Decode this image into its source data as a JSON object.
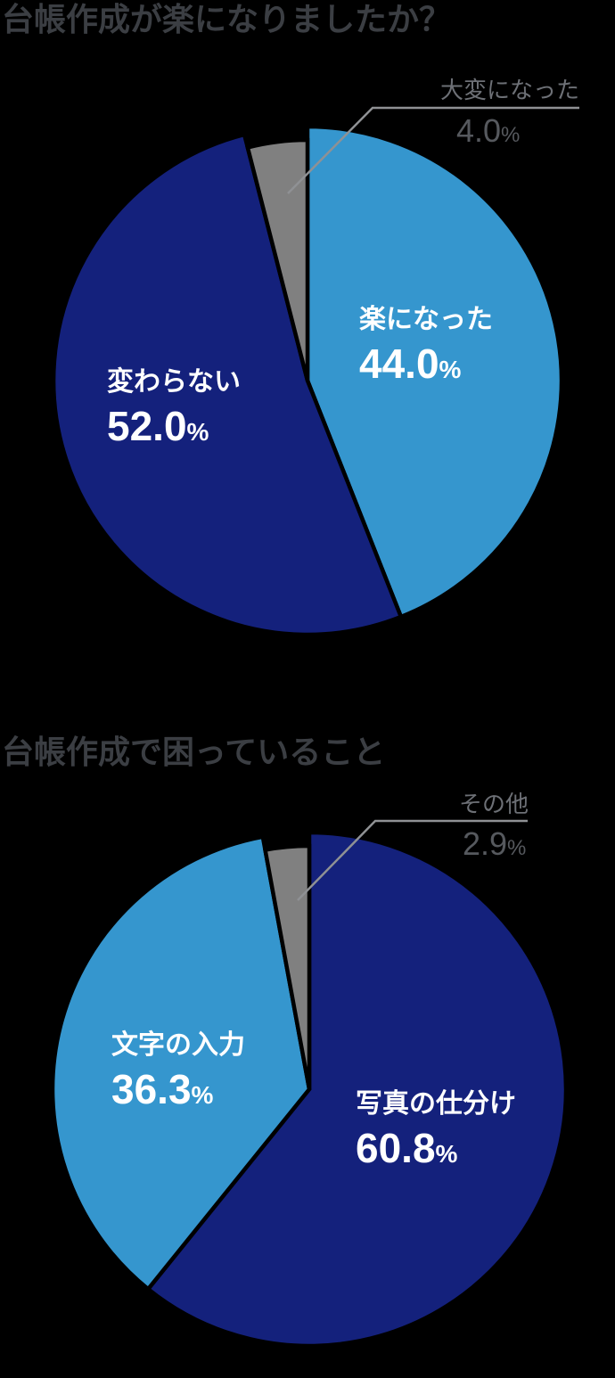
{
  "page": {
    "background": "#000000",
    "legend": "none"
  },
  "palette": {
    "dark_blue": "#14217C",
    "light_blue": "#3596CE",
    "gray": "#808080",
    "title_text": "#3B3E43",
    "callout_name_text": "#6D7076",
    "callout_value_text": "#56595E",
    "leader_line": "#8F9194",
    "slice_label_text": "#FFFFFF",
    "slice_separator": "#000000"
  },
  "chart_data": [
    {
      "type": "pie",
      "title": "台帳作成が楽になりましたか？",
      "start_angle_deg": 0,
      "direction": "clockwise",
      "total": 100.0,
      "slices": [
        {
          "label": "楽になった",
          "value": 44.0,
          "display_value": "44.0",
          "unit": "%",
          "color": "light_blue",
          "label_placement": "inside"
        },
        {
          "label": "変わらない",
          "value": 52.0,
          "display_value": "52.0",
          "unit": "%",
          "color": "dark_blue",
          "label_placement": "inside"
        },
        {
          "label": "大変になった",
          "value": 4.0,
          "display_value": "4.0",
          "unit": "%",
          "color": "gray",
          "label_placement": "callout-top-right"
        }
      ]
    },
    {
      "type": "pie",
      "title": "台帳作成で困っていること",
      "start_angle_deg": 0,
      "direction": "clockwise",
      "total": 100.0,
      "slices": [
        {
          "label": "写真の仕分け",
          "value": 60.8,
          "display_value": "60.8",
          "unit": "%",
          "color": "dark_blue",
          "label_placement": "inside"
        },
        {
          "label": "文字の入力",
          "value": 36.3,
          "display_value": "36.3",
          "unit": "%",
          "color": "light_blue",
          "label_placement": "inside"
        },
        {
          "label": "その他",
          "value": 2.9,
          "display_value": "2.9",
          "unit": "%",
          "color": "gray",
          "label_placement": "callout-top-right"
        }
      ]
    }
  ]
}
